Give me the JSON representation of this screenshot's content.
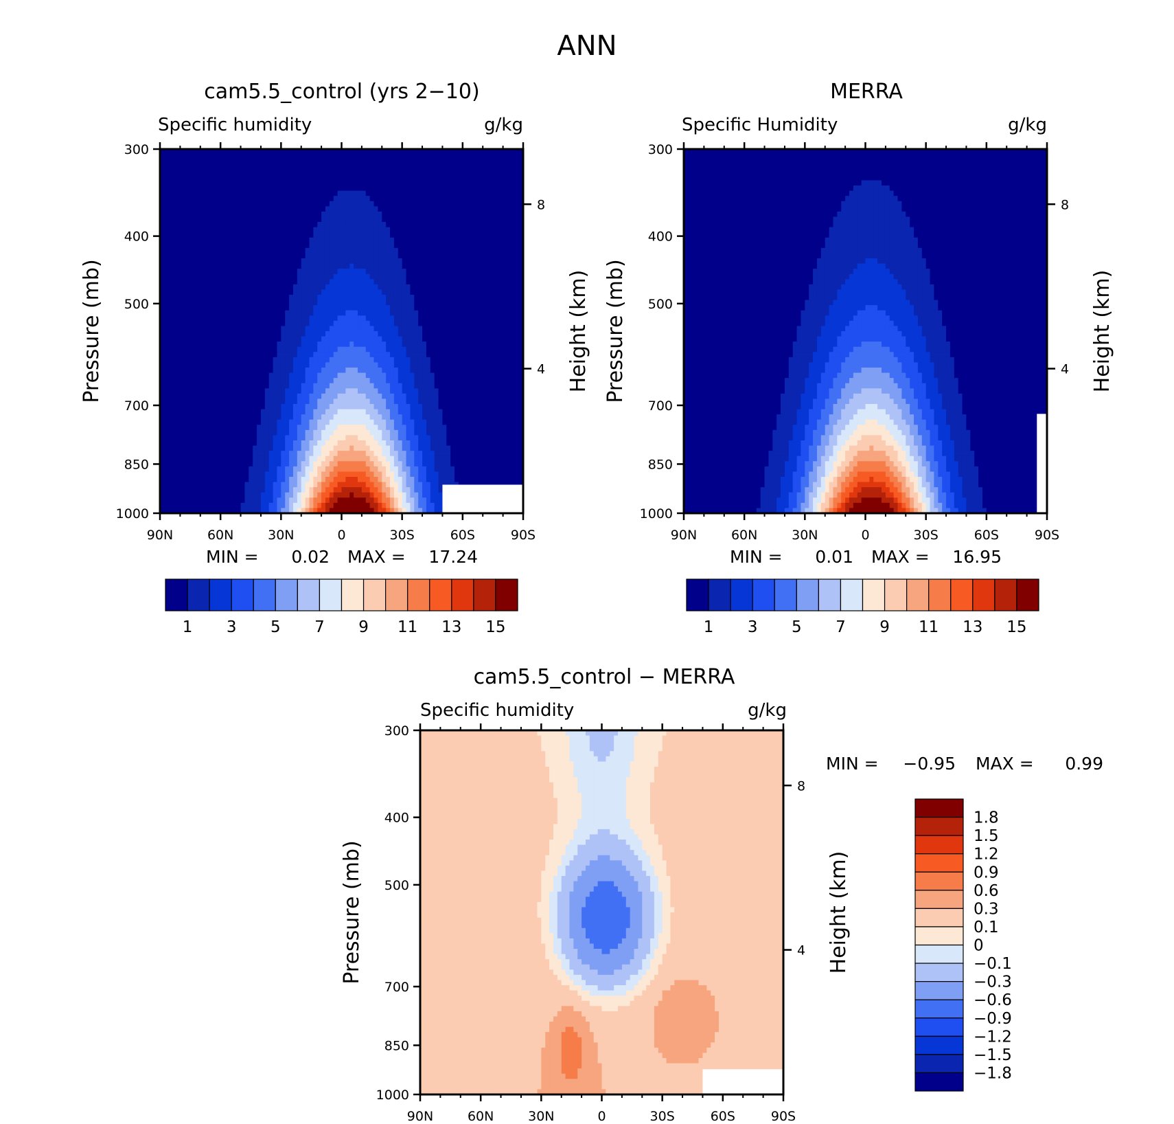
{
  "figure_title": "ANN",
  "colors": {
    "seq": [
      "#00008b",
      "#0a25b0",
      "#0637d6",
      "#1f4ff0",
      "#4170f5",
      "#7f9ff5",
      "#aec2f7",
      "#d8e7fa",
      "#fde8d6",
      "#fbccb1",
      "#f7a57f",
      "#f67d49",
      "#f75a22",
      "#e0370f",
      "#b4220a",
      "#800000"
    ],
    "diff_legend": [
      "#800000",
      "#b4220a",
      "#e0370f",
      "#f75a22",
      "#f67d49",
      "#f7a57f",
      "#fbccb1",
      "#fde8d6",
      "#d8e7fa",
      "#aec2f7",
      "#7f9ff5",
      "#4170f5",
      "#1f4ff0",
      "#0637d6",
      "#0a25b0",
      "#00008b"
    ]
  },
  "chart_data": [
    {
      "type": "heatmap",
      "title": "cam5.5_control (yrs 2−10)",
      "left_label": "Specific humidity",
      "right_label": "g/kg",
      "ylabel": "Pressure (mb)",
      "y2label": "Height (km)",
      "x_ticks": [
        "90N",
        "60N",
        "30N",
        "0",
        "30S",
        "60S",
        "90S"
      ],
      "y_ticks": [
        "300",
        "400",
        "500",
        "700",
        "850",
        "1000"
      ],
      "y2_ticks": [
        "8",
        "4"
      ],
      "min_label": "MIN =",
      "min_value": "0.02",
      "max_label": "MAX =",
      "max_value": "17.24",
      "colorbar_labels": [
        "1",
        "3",
        "5",
        "7",
        "9",
        "11",
        "13",
        "15"
      ],
      "field": {
        "peak": 17.24,
        "lat_center": -5,
        "x_width": 30,
        "y_scale": 3.2,
        "missing_region": [
          50,
          90,
          910,
          1000
        ]
      }
    },
    {
      "type": "heatmap",
      "title": "MERRA",
      "left_label": "Specific Humidity",
      "right_label": "g/kg",
      "ylabel": "Pressure (mb)",
      "y2label": "Height (km)",
      "x_ticks": [
        "90N",
        "60N",
        "30N",
        "0",
        "30S",
        "60S",
        "90S"
      ],
      "y_ticks": [
        "300",
        "400",
        "500",
        "700",
        "850",
        "1000"
      ],
      "y2_ticks": [
        "8",
        "4"
      ],
      "min_label": "MIN =",
      "min_value": "0.01",
      "max_label": "MAX =",
      "max_value": "16.95",
      "colorbar_labels": [
        "1",
        "3",
        "5",
        "7",
        "9",
        "11",
        "13",
        "15"
      ],
      "field": {
        "peak": 16.95,
        "lat_center": -3,
        "x_width": 31,
        "y_scale": 3.1,
        "missing_region": [
          85,
          90,
          720,
          1000
        ]
      }
    },
    {
      "type": "heatmap",
      "title": "cam5.5_control − MERRA",
      "left_label": "Specific humidity",
      "right_label": "g/kg",
      "ylabel": "Pressure (mb)",
      "y2label": "Height (km)",
      "x_ticks": [
        "90N",
        "60N",
        "30N",
        "0",
        "30S",
        "60S",
        "90S"
      ],
      "y_ticks": [
        "300",
        "400",
        "500",
        "700",
        "850",
        "1000"
      ],
      "y2_ticks": [
        "8",
        "4"
      ],
      "min_label": "MIN =",
      "min_value": "−0.95",
      "max_label": "MAX =",
      "max_value": "0.99",
      "colorbar_labels": [
        "1.8",
        "1.5",
        "1.2",
        "0.9",
        "0.6",
        "0.3",
        "0.1",
        "0",
        "−0.1",
        "−0.3",
        "−0.6",
        "−0.9",
        "−1.2",
        "−1.5",
        "−1.8"
      ],
      "levels": [
        -1.8,
        -1.5,
        -1.2,
        -0.9,
        -0.6,
        -0.3,
        -0.1,
        0,
        0.1,
        0.3,
        0.6,
        0.9,
        1.2,
        1.5,
        1.8
      ],
      "missing_region": [
        50,
        90,
        920,
        1000
      ]
    }
  ]
}
